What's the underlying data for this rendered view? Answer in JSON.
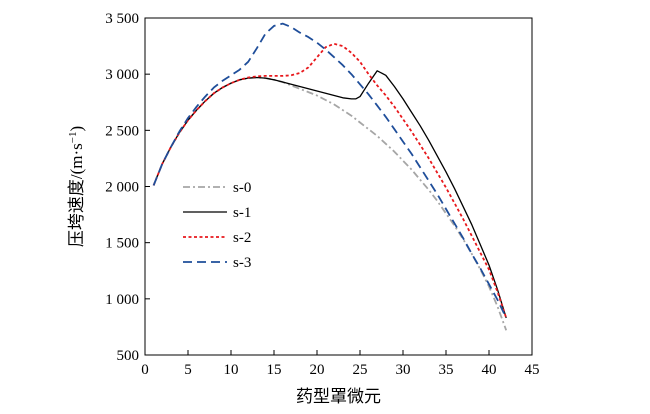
{
  "chart_data": {
    "type": "line",
    "title": "",
    "xlabel": "药型罩微元",
    "ylabel": "压垮速度/(m·s",
    "ylabel_sup": "−1",
    "ylabel_close": ")",
    "xlim": [
      0,
      45
    ],
    "ylim": [
      500,
      3500
    ],
    "xticks": [
      0,
      5,
      10,
      15,
      20,
      25,
      30,
      35,
      40,
      45
    ],
    "xtick_labels": [
      "0",
      "5",
      "10",
      "15",
      "20",
      "25",
      "30",
      "35",
      "40",
      "45"
    ],
    "yticks": [
      500,
      1000,
      1500,
      2000,
      2500,
      3000,
      3500
    ],
    "ytick_labels": [
      "500",
      "1 000",
      "1 500",
      "2 000",
      "2 500",
      "3 000",
      "3 500"
    ],
    "grid": false,
    "legend_position": "left-center",
    "series": [
      {
        "name": "s-0",
        "color": "#a6a6a6",
        "dash": "dashdot",
        "x": [
          1,
          2,
          3,
          4,
          5,
          6,
          7,
          8,
          9,
          10,
          11,
          12,
          13,
          14,
          15,
          16,
          17,
          18,
          19,
          20,
          21,
          22,
          23,
          24,
          25,
          26,
          27,
          28,
          29,
          30,
          31,
          32,
          33,
          34,
          35,
          36,
          37,
          38,
          39,
          40,
          41,
          42
        ],
        "y": [
          2010,
          2200,
          2350,
          2480,
          2590,
          2680,
          2760,
          2830,
          2880,
          2920,
          2950,
          2965,
          2970,
          2965,
          2950,
          2930,
          2900,
          2870,
          2840,
          2810,
          2770,
          2730,
          2680,
          2630,
          2570,
          2510,
          2450,
          2380,
          2310,
          2230,
          2150,
          2060,
          1970,
          1870,
          1760,
          1650,
          1530,
          1400,
          1260,
          1110,
          930,
          720
        ]
      },
      {
        "name": "s-1",
        "color": "#000000",
        "dash": "solid",
        "x": [
          1,
          2,
          3,
          4,
          5,
          6,
          7,
          8,
          9,
          10,
          11,
          12,
          13,
          14,
          15,
          16,
          17,
          18,
          19,
          20,
          21,
          22,
          23,
          24,
          24.5,
          25,
          26,
          27,
          28,
          29,
          30,
          31,
          32,
          33,
          34,
          35,
          36,
          37,
          38,
          39,
          40,
          41,
          42
        ],
        "y": [
          2010,
          2200,
          2350,
          2480,
          2590,
          2680,
          2760,
          2830,
          2880,
          2920,
          2950,
          2965,
          2970,
          2965,
          2950,
          2930,
          2910,
          2890,
          2870,
          2850,
          2830,
          2810,
          2790,
          2780,
          2780,
          2800,
          2920,
          3030,
          2990,
          2890,
          2780,
          2660,
          2540,
          2410,
          2270,
          2130,
          1980,
          1820,
          1660,
          1480,
          1300,
          1080,
          830
        ]
      },
      {
        "name": "s-2",
        "color": "#e8181c",
        "dash": "dotted",
        "x": [
          1,
          2,
          3,
          4,
          5,
          6,
          7,
          8,
          9,
          10,
          11,
          12,
          13,
          14,
          15,
          16,
          17,
          18,
          19,
          20,
          21,
          22,
          23,
          24,
          25,
          26,
          27,
          28,
          29,
          30,
          31,
          32,
          33,
          34,
          35,
          36,
          37,
          38,
          39,
          40,
          41,
          42
        ],
        "y": [
          2010,
          2200,
          2350,
          2480,
          2590,
          2680,
          2760,
          2830,
          2880,
          2920,
          2950,
          2970,
          2980,
          2985,
          2985,
          2985,
          2990,
          3010,
          3060,
          3150,
          3240,
          3270,
          3250,
          3190,
          3110,
          3000,
          2900,
          2810,
          2710,
          2600,
          2490,
          2370,
          2250,
          2120,
          1990,
          1850,
          1710,
          1560,
          1410,
          1260,
          1060,
          830
        ]
      },
      {
        "name": "s-3",
        "color": "#1f4e9a",
        "dash": "dashed",
        "x": [
          1,
          2,
          3,
          4,
          5,
          6,
          7,
          8,
          9,
          10,
          11,
          12,
          13,
          14,
          15,
          16,
          17,
          18,
          19,
          20,
          21,
          22,
          23,
          24,
          25,
          26,
          27,
          28,
          29,
          30,
          31,
          32,
          33,
          34,
          35,
          36,
          37,
          38,
          39,
          40,
          41,
          42
        ],
        "y": [
          2010,
          2200,
          2350,
          2490,
          2610,
          2710,
          2800,
          2880,
          2940,
          2990,
          3040,
          3110,
          3230,
          3360,
          3430,
          3450,
          3420,
          3370,
          3330,
          3280,
          3220,
          3150,
          3080,
          3000,
          2910,
          2820,
          2720,
          2620,
          2510,
          2400,
          2290,
          2170,
          2050,
          1930,
          1800,
          1670,
          1540,
          1400,
          1270,
          1130,
          990,
          830
        ]
      }
    ]
  }
}
